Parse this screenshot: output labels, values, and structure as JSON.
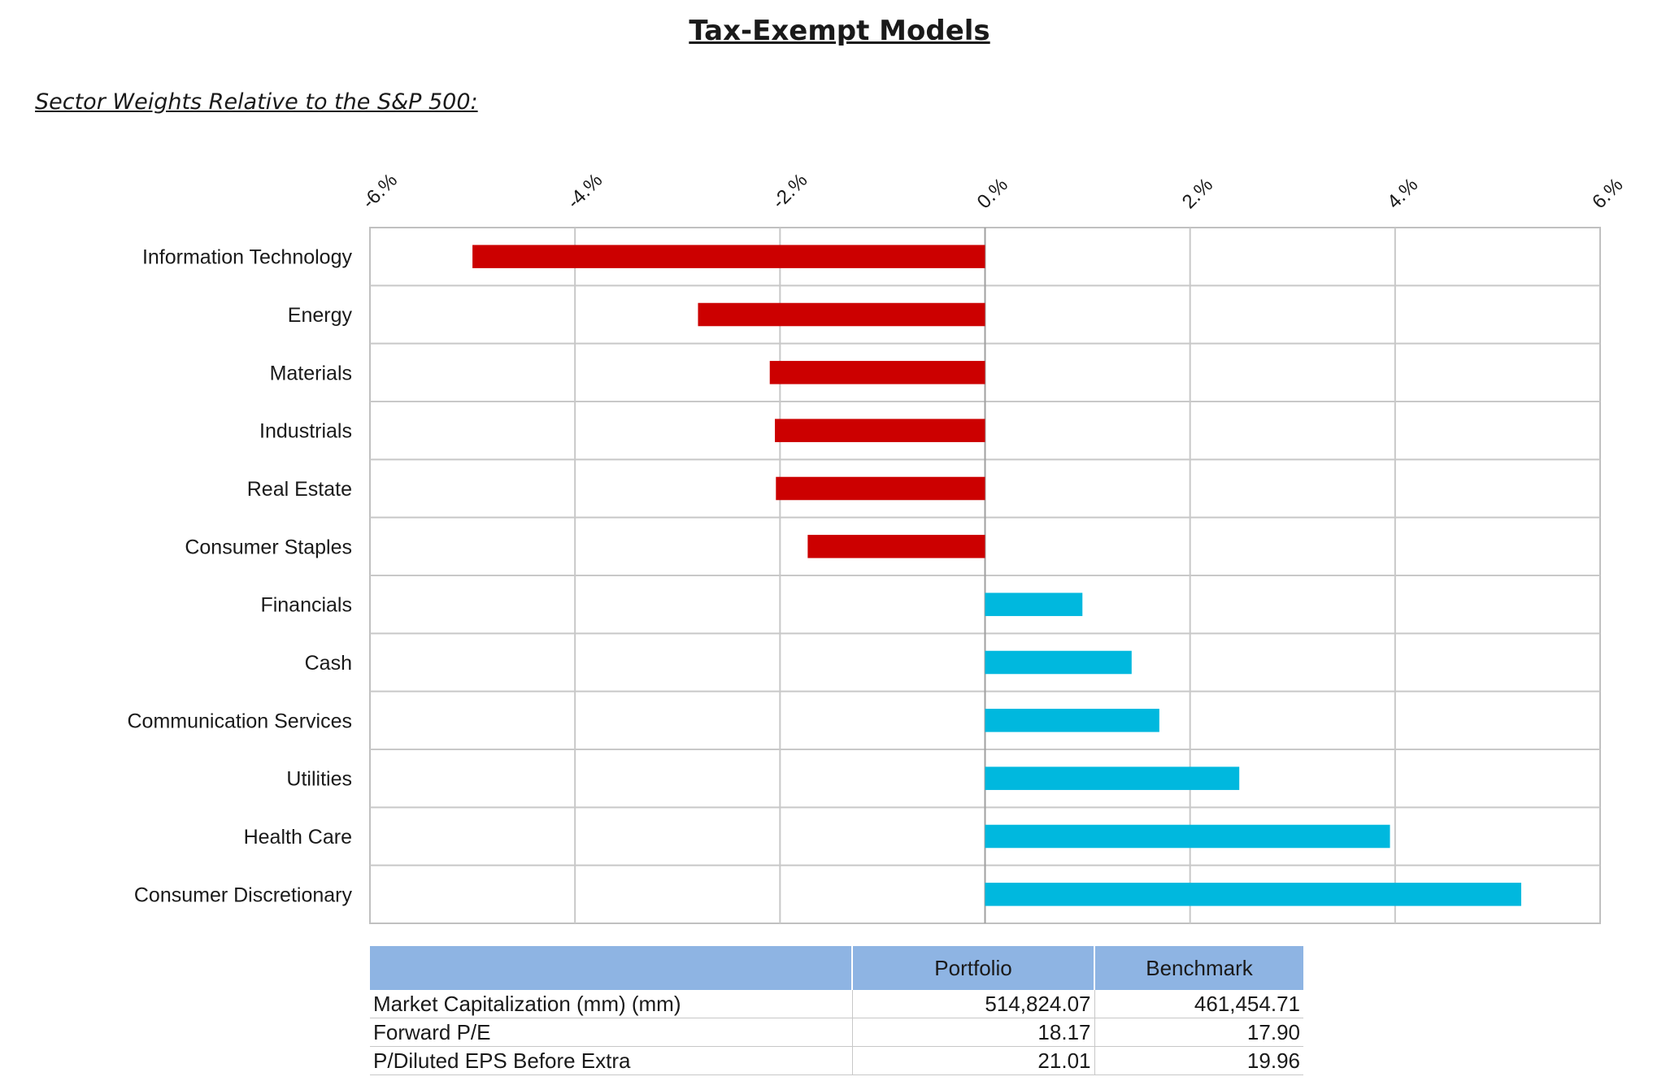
{
  "header": {
    "title": "Tax-Exempt Models",
    "subtitle": "Sector Weights Relative to the S&P 500:"
  },
  "chart_data": {
    "type": "bar",
    "orientation": "horizontal",
    "categories": [
      "Information Technology",
      "Energy",
      "Materials",
      "Industrials",
      "Real Estate",
      "Consumer Staples",
      "Financials",
      "Cash",
      "Communication Services",
      "Utilities",
      "Health Care",
      "Consumer Discretionary"
    ],
    "values": [
      -5.0,
      -2.8,
      -2.1,
      -2.05,
      -2.04,
      -1.73,
      0.95,
      1.43,
      1.7,
      2.48,
      3.95,
      5.23
    ],
    "xlim": [
      -6,
      6
    ],
    "xticks": [
      -6,
      -4,
      -2,
      0,
      2,
      4,
      6
    ],
    "xtick_labels": [
      "-6.%",
      "-4.%",
      "-2.%",
      "0.%",
      "2.%",
      "4.%",
      "6.%"
    ],
    "negative_color": "#cc0000",
    "positive_color": "#00b8de",
    "grid": true,
    "axis_position": "top"
  },
  "stats_table": {
    "headers": [
      "",
      "Portfolio",
      "Benchmark"
    ],
    "rows": [
      {
        "label": "Market Capitalization (mm) (mm)",
        "portfolio": "514,824.07",
        "benchmark": "461,454.71"
      },
      {
        "label": "Forward P/E",
        "portfolio": "18.17",
        "benchmark": "17.90"
      },
      {
        "label": "P/Diluted EPS Before Extra",
        "portfolio": "21.01",
        "benchmark": "19.96"
      }
    ]
  }
}
